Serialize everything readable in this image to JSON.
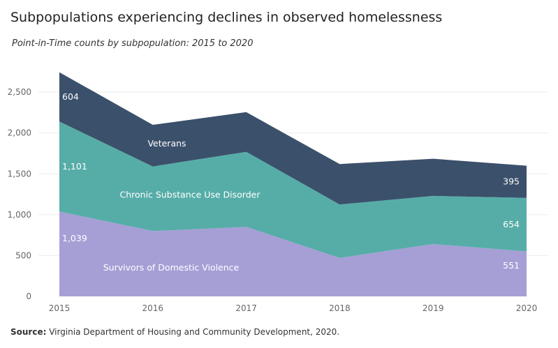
{
  "title": "Subpopulations experiencing declines in observed homelessness",
  "subtitle": "Point-in-Time counts by subpopulation: 2015 to 2020",
  "source": {
    "label": "Source:",
    "text": " Virginia Department of Housing and Community Development, 2020."
  },
  "chart_data": {
    "type": "area",
    "stacked": true,
    "x": [
      "2015",
      "2016",
      "2017",
      "2018",
      "2019",
      "2020"
    ],
    "ylim": [
      0,
      2800
    ],
    "yticks": [
      0,
      500,
      1000,
      1500,
      2000,
      2500
    ],
    "ytick_labels": [
      "0",
      "500",
      "1,000",
      "1,500",
      "2,000",
      "2,500"
    ],
    "grid": true,
    "series": [
      {
        "name": "Survivors of Domestic Violence",
        "color": "#a69fd6",
        "values": [
          1039,
          800,
          850,
          470,
          640,
          551
        ]
      },
      {
        "name": "Chronic Substance Use Disorder",
        "color": "#56ada8",
        "values": [
          1101,
          790,
          920,
          655,
          590,
          654
        ]
      },
      {
        "name": "Veterans",
        "color": "#3b506b",
        "values": [
          604,
          510,
          485,
          495,
          455,
          395
        ]
      }
    ],
    "data_labels": [
      {
        "series": 0,
        "index": 0,
        "text": "1,039"
      },
      {
        "series": 1,
        "index": 0,
        "text": "1,101"
      },
      {
        "series": 2,
        "index": 0,
        "text": "604"
      },
      {
        "series": 0,
        "index": 5,
        "text": "551"
      },
      {
        "series": 1,
        "index": 5,
        "text": "654"
      },
      {
        "series": 2,
        "index": 5,
        "text": "395"
      }
    ]
  }
}
